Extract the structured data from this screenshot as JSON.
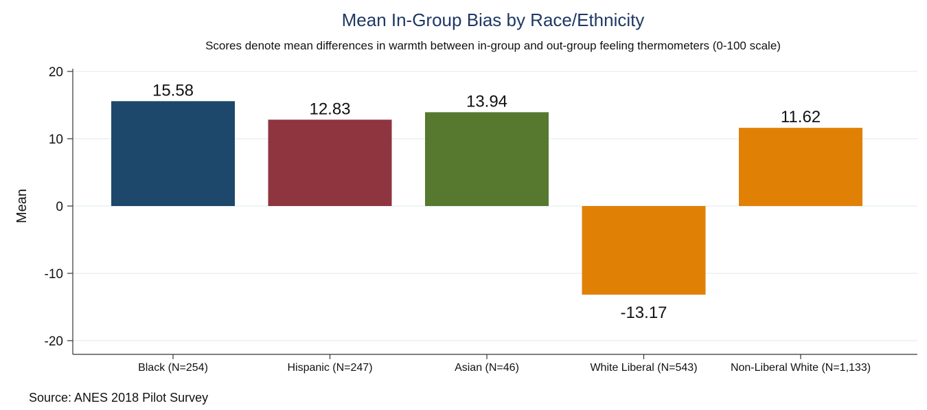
{
  "chart_data": {
    "type": "bar",
    "title": "Mean In-Group Bias by Race/Ethnicity",
    "subtitle": "Scores denote mean differences in warmth between in-group and out-group feeling thermometers (0-100 scale)",
    "xlabel": "",
    "ylabel": "Mean",
    "ylim": [
      -20,
      20
    ],
    "yticks": [
      20,
      10,
      0,
      -10,
      -20
    ],
    "grid": true,
    "categories": [
      "Black (N=254)",
      "Hispanic (N=247)",
      "Asian (N=46)",
      "White Liberal (N=543)",
      "Non-Liberal White (N=1,133)"
    ],
    "values": [
      15.58,
      12.83,
      13.94,
      -13.17,
      11.62
    ],
    "value_labels": [
      "15.58",
      "12.83",
      "13.94",
      "-13.17",
      "11.62"
    ],
    "colors": [
      "#1d476b",
      "#8e3540",
      "#56792f",
      "#e08106",
      "#e08106"
    ]
  },
  "source": "Source: ANES 2018 Pilot Survey"
}
